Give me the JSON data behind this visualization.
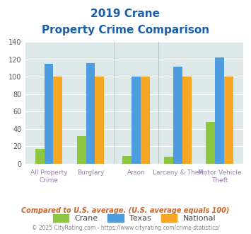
{
  "title_line1": "2019 Crane",
  "title_line2": "Property Crime Comparison",
  "categories": [
    "All Property Crime",
    "Burglary",
    "Arson",
    "Larceny & Theft",
    "Motor Vehicle Theft"
  ],
  "crane_values": [
    17,
    32,
    9,
    8,
    48
  ],
  "texas_values": [
    115,
    116,
    100,
    112,
    122
  ],
  "national_values": [
    100,
    100,
    100,
    100,
    100
  ],
  "crane_color": "#8dc63f",
  "texas_color": "#4d9de0",
  "national_color": "#f5a623",
  "ylim": [
    0,
    140
  ],
  "yticks": [
    0,
    20,
    40,
    60,
    80,
    100,
    120,
    140
  ],
  "plot_bg": "#dde8e8",
  "grid_color": "#ffffff",
  "title_color": "#1a5fa8",
  "label_color": "#9e7cb0",
  "footer_color": "#c8632a",
  "copyright_color": "#888888",
  "footer_note": "Compared to U.S. average. (U.S. average equals 100)",
  "copyright": "© 2025 CityRating.com - https://www.cityrating.com/crime-statistics/",
  "legend_labels": [
    "Crane",
    "Texas",
    "National"
  ],
  "bar_width": 0.22,
  "positions": [
    0.0,
    1.0,
    2.1,
    3.1,
    4.1
  ]
}
